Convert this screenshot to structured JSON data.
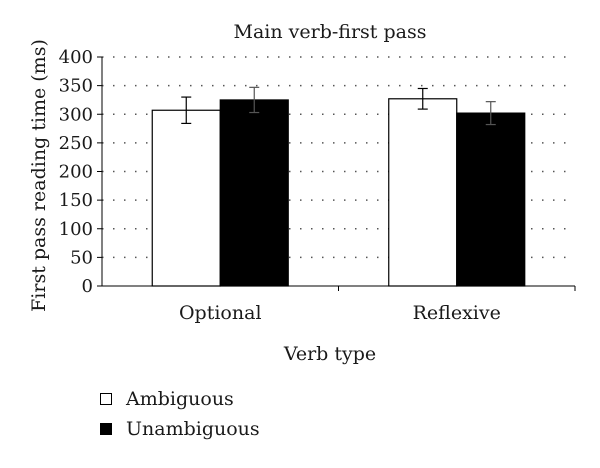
{
  "chart_data": {
    "type": "bar",
    "title": "Main verb-first pass",
    "xlabel": "Verb type",
    "ylabel": "First pass reading time (ms)",
    "categories": [
      "Optional",
      "Reflexive"
    ],
    "ylim": [
      0,
      400
    ],
    "yticks": [
      0,
      50,
      100,
      150,
      200,
      250,
      300,
      350,
      400
    ],
    "grid": true,
    "legend_position": "bottom-left",
    "series": [
      {
        "name": "Ambiguous",
        "color": "#ffffff",
        "values": [
          307,
          327
        ],
        "error": [
          23,
          18
        ]
      },
      {
        "name": "Unambiguous",
        "color": "#000000",
        "values": [
          325,
          302
        ],
        "error": [
          22,
          20
        ]
      }
    ]
  }
}
